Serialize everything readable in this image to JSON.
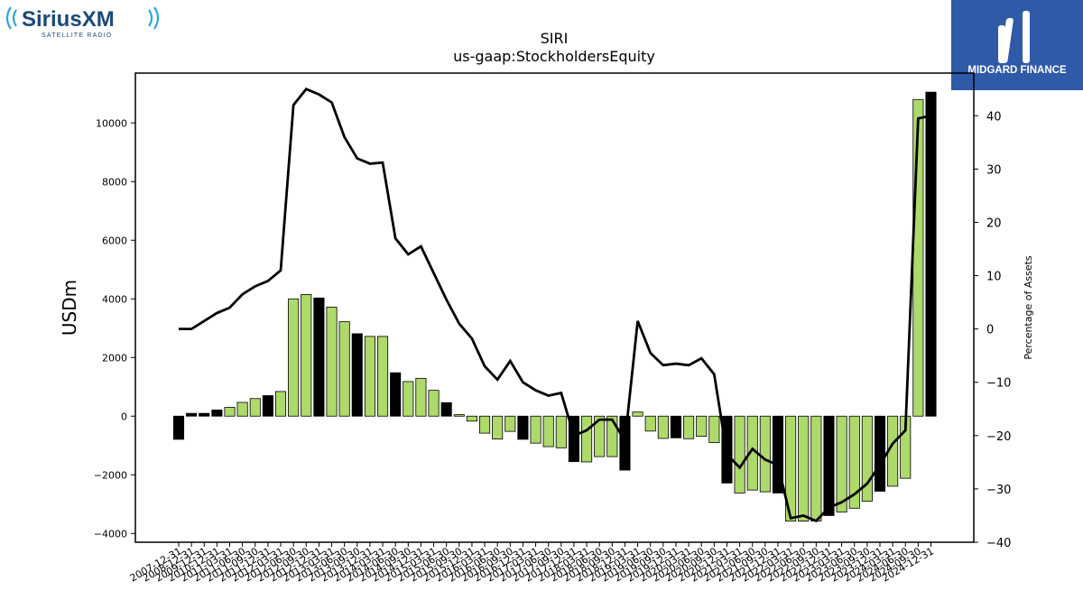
{
  "logos": {
    "left": {
      "brand": "SiriusXM",
      "tagline": "SATELLITE RADIO",
      "color": "#1a4a7a",
      "accent": "#29a8e0"
    },
    "right": {
      "brand": "MIDGARD FINANCE",
      "bg": "#2f5aa8"
    }
  },
  "chart_data": {
    "type": "bar",
    "title": "SIRI",
    "subtitle": "us-gaap:StockholdersEquity",
    "ylabel": "USDm",
    "ylabel_right": "Percentage of Assets",
    "ylim": [
      -4300,
      11700
    ],
    "ylim_right": [
      -40,
      48
    ],
    "yticks": [
      -4000,
      -2000,
      0,
      2000,
      4000,
      6000,
      8000,
      10000
    ],
    "yticks_right": [
      -40,
      -30,
      -20,
      -10,
      0,
      10,
      20,
      30,
      40
    ],
    "grid": false,
    "colors": {
      "annual": "#000000",
      "quarterly": "#aed96b",
      "line": "#000000"
    },
    "categories": [
      "2007-12-31",
      "2008-12-31",
      "2009-12-31",
      "2010-12-31",
      "2011-03-31",
      "2011-06-30",
      "2011-09-30",
      "2011-12-31",
      "2012-03-31",
      "2012-06-30",
      "2012-09-30",
      "2012-12-31",
      "2013-03-31",
      "2013-06-30",
      "2013-09-30",
      "2013-12-31",
      "2014-03-31",
      "2014-06-30",
      "2014-09-30",
      "2014-12-31",
      "2015-03-31",
      "2015-06-30",
      "2015-09-30",
      "2015-12-31",
      "2016-03-31",
      "2016-06-30",
      "2016-09-30",
      "2016-12-31",
      "2017-03-31",
      "2017-06-30",
      "2017-09-30",
      "2017-12-31",
      "2018-03-31",
      "2018-06-30",
      "2018-09-30",
      "2018-12-31",
      "2019-03-31",
      "2019-06-30",
      "2019-09-30",
      "2019-12-31",
      "2020-03-31",
      "2020-06-30",
      "2020-09-30",
      "2020-12-31",
      "2021-03-31",
      "2021-06-30",
      "2021-09-30",
      "2021-12-31",
      "2022-03-31",
      "2022-06-30",
      "2022-09-30",
      "2022-12-31",
      "2023-03-31",
      "2023-06-30",
      "2023-09-30",
      "2023-12-31",
      "2024-03-31",
      "2024-06-30",
      "2024-09-30",
      "2024-12-31"
    ],
    "visible_tick_labels": [
      "2007-12-31",
      "2008-12-31",
      "2009-12-31",
      "2010-12-31",
      "2011-03-31",
      "2011-06-30",
      "2011-09-30",
      "2011-12-31",
      "2012-03-31",
      "2012-06-30",
      "2012-09-30",
      "2012-12-31",
      "2013-03-31",
      "2013-06-30",
      "2013-09-30",
      "2013-12-31",
      "2014-03-31",
      "2014-06-30",
      "2014-09-30",
      "2014-12-31",
      "2015-03-31",
      "2015-06-30",
      "2015-09-30",
      "2015-12-31",
      "2016-03-31",
      "2016-06-30",
      "2016-09-30",
      "2016-12-31",
      "2017-03-31",
      "2017-06-30",
      "2017-09-30",
      "2017-12-31",
      "2018-03-31",
      "2018-06-30",
      "2018-09-30",
      "2018-12-31",
      "2019-03-31",
      "2019-06-30",
      "2019-09-30",
      "2019-12-31",
      "2020-03-31",
      "2020-06-30",
      "2020-09-30",
      "2020-12-31",
      "2021-03-31",
      "2021-06-30",
      "2021-09-30",
      "2021-12-31",
      "2022-03-31",
      "2022-06-30",
      "2022-09-30",
      "2022-12-31",
      "2023-03-31",
      "2023-06-30",
      "2023-09-30",
      "2023-12-31",
      "2024-03-31",
      "2024-06-30",
      "2024-09-30",
      "2024-12-31"
    ],
    "annual_flags": [
      1,
      1,
      1,
      1,
      0,
      0,
      0,
      1,
      0,
      0,
      0,
      1,
      0,
      0,
      1,
      0,
      0,
      1,
      0,
      0,
      0,
      1,
      0,
      0,
      0,
      0,
      0,
      1,
      0,
      0,
      0,
      1,
      0,
      0,
      0,
      1,
      0,
      0,
      0,
      1,
      0,
      0,
      0,
      1,
      0,
      0,
      0,
      1,
      0,
      0,
      0,
      1,
      0,
      0,
      0,
      1,
      0,
      0,
      0,
      1
    ],
    "values": [
      -790,
      95,
      95,
      210,
      300,
      470,
      600,
      700,
      840,
      4000,
      4150,
      4030,
      3720,
      3220,
      2810,
      2720,
      2720,
      1480,
      1180,
      1290,
      880,
      460,
      50,
      -170,
      -580,
      -780,
      -520,
      -790,
      -920,
      -1040,
      -1080,
      -1550,
      -1560,
      -1380,
      -1380,
      -1840,
      140,
      -510,
      -760,
      -740,
      -770,
      -690,
      -900,
      -2280,
      -2620,
      -2520,
      -2580,
      -2620,
      -3580,
      -3580,
      -3580,
      -3390,
      -3270,
      -3140,
      -2900,
      -2560,
      -2390,
      -2120,
      10800,
      11050
    ],
    "pct_assets": [
      0,
      0,
      1.5,
      3,
      4,
      6.5,
      8,
      9,
      11,
      42,
      45,
      44,
      42.5,
      36,
      32,
      31,
      31.2,
      17,
      14,
      15.5,
      10.5,
      5.5,
      1,
      -1.8,
      -7,
      -9.5,
      -6,
      -10,
      -11.5,
      -12.5,
      -12,
      -20,
      -19,
      -17,
      -17,
      -21,
      1.5,
      -4.5,
      -6.8,
      -6.5,
      -6.8,
      -5.5,
      -8.5,
      -23.5,
      -26,
      -22.5,
      -24.5,
      -25.5,
      -35.5,
      -35,
      -36,
      -33.5,
      -32.5,
      -31,
      -29,
      -25.5,
      -21.5,
      -19,
      39.5,
      40
    ]
  }
}
